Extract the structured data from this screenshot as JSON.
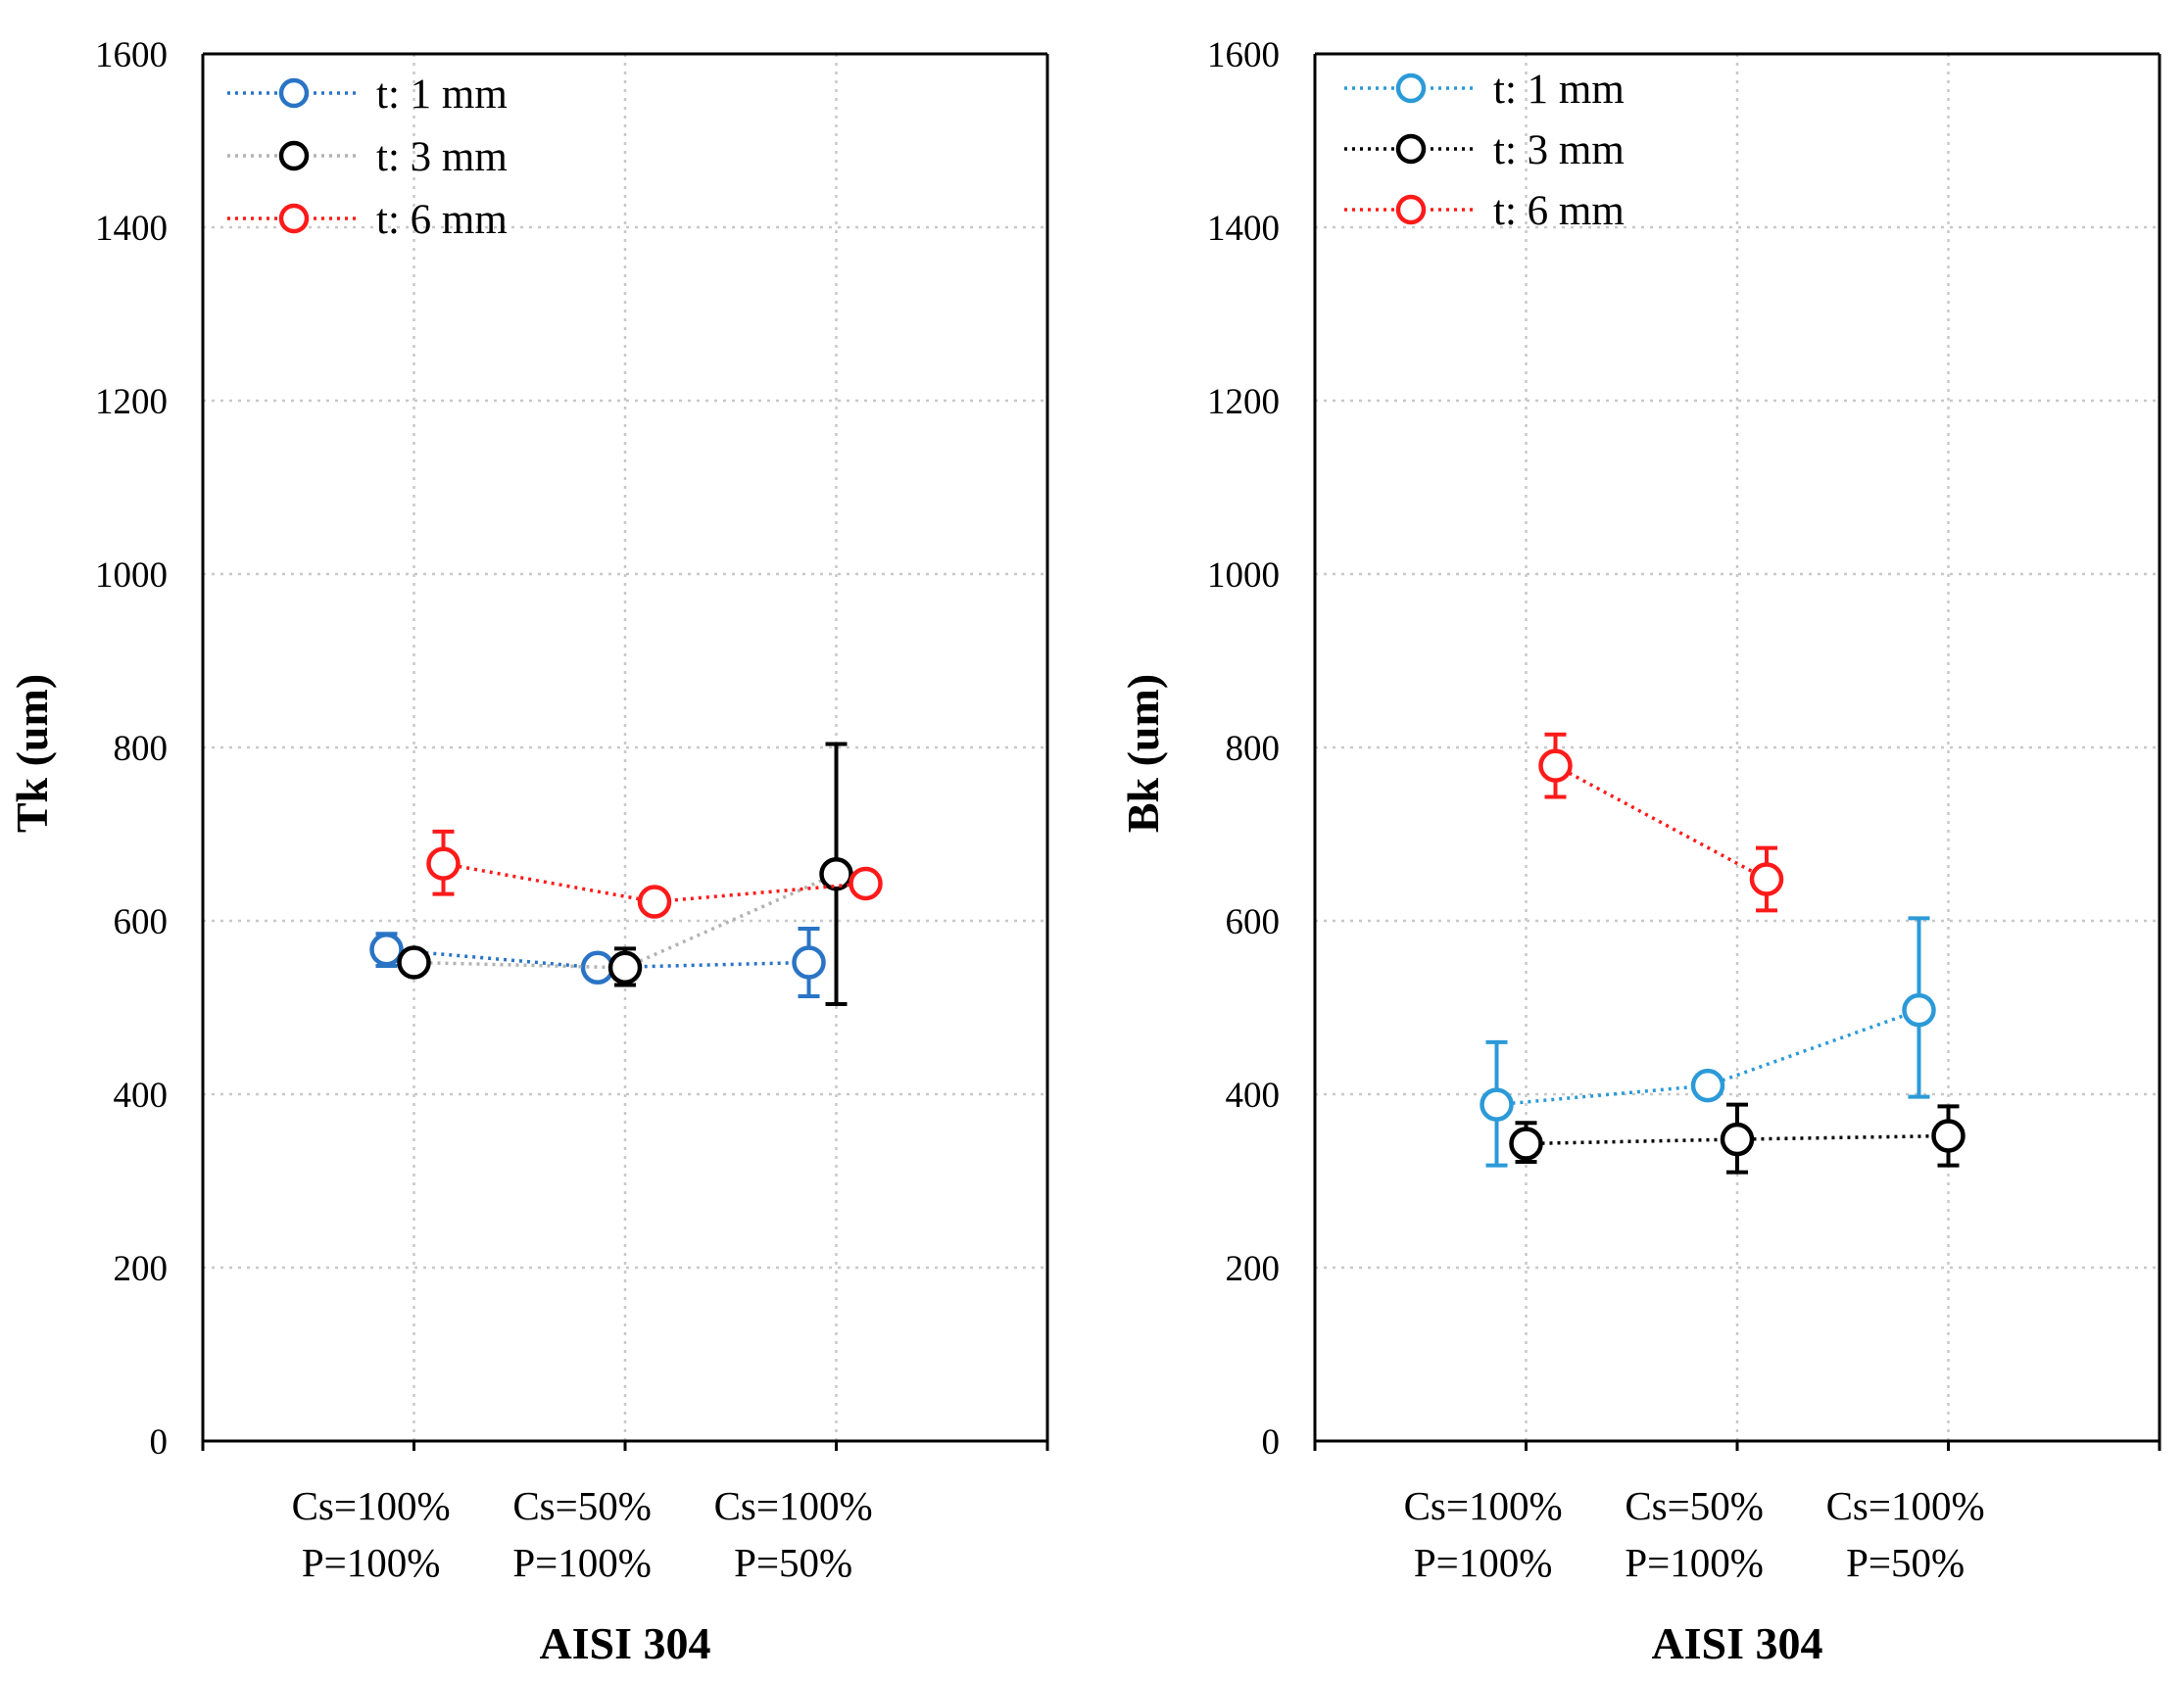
{
  "chart_data": [
    {
      "type": "line",
      "title": "",
      "xlabel": "AISI 304",
      "ylabel": "Tk (um)",
      "ylim": [
        0,
        1600
      ],
      "yticks": [
        0,
        200,
        400,
        600,
        800,
        1000,
        1200,
        1400,
        1600
      ],
      "grid": true,
      "legend": "top-left",
      "categories": [
        {
          "line1": "Cs=100%",
          "line2": "P=100%"
        },
        {
          "line1": "Cs=50%",
          "line2": "P=100%"
        },
        {
          "line1": "Cs=100%",
          "line2": "P=50%"
        }
      ],
      "series": [
        {
          "name": "t: 1 mm",
          "color": "#2a74c5",
          "values": [
            567,
            546,
            552
          ],
          "err_low": [
            548,
            535,
            513
          ],
          "err_high": [
            585,
            557,
            591
          ]
        },
        {
          "name": "t: 3 mm",
          "color": "#000000",
          "line_color": "#b3b3b3",
          "values": [
            552,
            546,
            654
          ],
          "err_low": [
            544,
            526,
            504
          ],
          "err_high": [
            560,
            568,
            804
          ]
        },
        {
          "name": "t: 6 mm",
          "color": "#ff1a1a",
          "values": [
            666,
            622,
            643
          ],
          "err_low": [
            631,
            610,
            630
          ],
          "err_high": [
            703,
            635,
            656
          ]
        }
      ]
    },
    {
      "type": "line",
      "title": "",
      "xlabel": "AISI 304",
      "ylabel": "Bk (um)",
      "ylim": [
        0,
        1600
      ],
      "yticks": [
        0,
        200,
        400,
        600,
        800,
        1000,
        1200,
        1400,
        1600
      ],
      "grid": true,
      "legend": "top-left",
      "categories": [
        {
          "line1": "Cs=100%",
          "line2": "P=100%"
        },
        {
          "line1": "Cs=50%",
          "line2": "P=100%"
        },
        {
          "line1": "Cs=100%",
          "line2": "P=50%"
        }
      ],
      "series": [
        {
          "name": "t: 1 mm",
          "color": "#2c9ad8",
          "values": [
            388,
            410,
            497
          ],
          "err_low": [
            318,
            401,
            397
          ],
          "err_high": [
            460,
            419,
            603
          ]
        },
        {
          "name": "t: 3 mm",
          "color": "#000000",
          "values": [
            343,
            348,
            352
          ],
          "err_low": [
            322,
            310,
            318
          ],
          "err_high": [
            367,
            388,
            386
          ]
        },
        {
          "name": "t: 6 mm",
          "color": "#ff1a1a",
          "values": [
            779,
            648,
            null
          ],
          "err_low": [
            743,
            612,
            null
          ],
          "err_high": [
            815,
            684,
            null
          ]
        }
      ]
    }
  ]
}
